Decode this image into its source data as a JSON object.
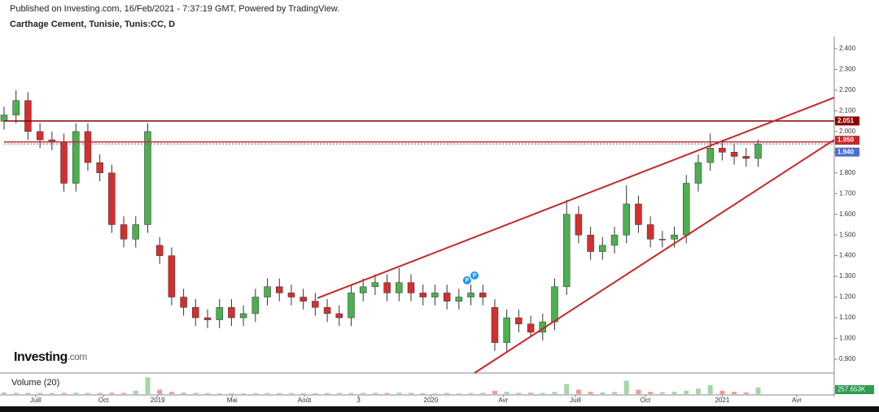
{
  "header": {
    "published": "Published on Investing.com, 16/Feb/2021 - 7:37:19 GMT, Powered by TradingView.",
    "symbol": "Carthage Cement, Tunisie, Tunis:CC, D"
  },
  "logo": {
    "brand": "Investing",
    "suffix": ".com"
  },
  "chart_data": {
    "type": "candlestick",
    "x": [
      -1.4,
      -0.87,
      -0.34,
      0.19,
      0.72,
      1.25,
      1.78,
      2.31,
      2.84,
      3.37,
      3.9,
      4.43,
      4.96,
      5.49,
      6.02,
      6.55,
      7.08,
      7.61,
      8.14,
      8.67,
      9.2,
      9.73,
      10.26,
      10.79,
      11.32,
      11.85,
      12.38,
      12.91,
      13.44,
      13.97,
      14.5,
      15.03,
      15.56,
      16.09,
      16.62,
      17.15,
      17.68,
      18.21,
      18.74,
      19.27,
      19.8,
      20.33,
      20.86,
      21.39,
      21.92,
      22.45,
      22.98,
      23.51,
      24.04,
      24.57,
      25.1,
      25.63,
      26.16,
      26.69,
      27.22,
      27.75,
      28.28,
      28.81,
      29.34,
      29.87,
      30.4,
      30.93,
      31.46,
      31.99
    ],
    "open": [
      2.05,
      2.08,
      2.15,
      2.0,
      1.96,
      1.95,
      1.75,
      2.0,
      1.85,
      1.8,
      1.55,
      1.48,
      1.55,
      1.45,
      1.4,
      1.2,
      1.15,
      1.1,
      1.09,
      1.15,
      1.1,
      1.12,
      1.2,
      1.25,
      1.22,
      1.2,
      1.18,
      1.15,
      1.12,
      1.1,
      1.22,
      1.25,
      1.27,
      1.22,
      1.27,
      1.22,
      1.2,
      1.22,
      1.18,
      1.2,
      1.22,
      1.15,
      0.98,
      1.1,
      1.07,
      1.03,
      1.08,
      1.25,
      1.6,
      1.5,
      1.42,
      1.45,
      1.5,
      1.65,
      1.55,
      1.48,
      1.48,
      1.5,
      1.75,
      1.85,
      1.92,
      1.9,
      1.88,
      1.87
    ],
    "high": [
      2.12,
      2.2,
      2.19,
      2.04,
      2.0,
      1.99,
      2.04,
      2.04,
      1.89,
      1.84,
      1.59,
      1.59,
      2.04,
      1.49,
      1.44,
      1.24,
      1.19,
      1.14,
      1.19,
      1.19,
      1.16,
      1.24,
      1.29,
      1.29,
      1.26,
      1.24,
      1.22,
      1.19,
      1.16,
      1.26,
      1.29,
      1.31,
      1.31,
      1.34,
      1.31,
      1.26,
      1.26,
      1.26,
      1.24,
      1.26,
      1.26,
      1.19,
      1.14,
      1.14,
      1.11,
      1.12,
      1.29,
      1.67,
      1.64,
      1.54,
      1.49,
      1.54,
      1.74,
      1.69,
      1.59,
      1.52,
      1.54,
      1.79,
      1.89,
      1.99,
      1.96,
      1.94,
      1.92,
      1.96
    ],
    "low": [
      2.01,
      2.04,
      1.96,
      1.92,
      1.91,
      1.71,
      1.71,
      1.81,
      1.76,
      1.51,
      1.44,
      1.44,
      1.51,
      1.36,
      1.16,
      1.11,
      1.06,
      1.05,
      1.05,
      1.06,
      1.06,
      1.08,
      1.16,
      1.18,
      1.16,
      1.14,
      1.11,
      1.08,
      1.06,
      1.06,
      1.18,
      1.21,
      1.18,
      1.18,
      1.18,
      1.16,
      1.16,
      1.14,
      1.14,
      1.16,
      1.16,
      0.94,
      0.94,
      1.03,
      1.01,
      0.99,
      1.04,
      1.21,
      1.46,
      1.38,
      1.38,
      1.41,
      1.46,
      1.51,
      1.44,
      1.44,
      1.44,
      1.46,
      1.71,
      1.81,
      1.86,
      1.84,
      1.83,
      1.83
    ],
    "close": [
      2.08,
      2.15,
      2.0,
      1.96,
      1.95,
      1.75,
      2.0,
      1.85,
      1.8,
      1.55,
      1.48,
      1.55,
      2.0,
      1.4,
      1.2,
      1.15,
      1.1,
      1.09,
      1.15,
      1.1,
      1.12,
      1.2,
      1.25,
      1.22,
      1.2,
      1.18,
      1.15,
      1.12,
      1.1,
      1.22,
      1.25,
      1.27,
      1.22,
      1.27,
      1.22,
      1.2,
      1.22,
      1.18,
      1.2,
      1.22,
      1.2,
      0.98,
      1.1,
      1.07,
      1.03,
      1.08,
      1.25,
      1.6,
      1.5,
      1.42,
      1.45,
      1.5,
      1.65,
      1.55,
      1.48,
      1.48,
      1.5,
      1.75,
      1.85,
      1.92,
      1.9,
      1.88,
      1.87,
      1.94
    ],
    "up_color": "#4caf50",
    "down_color": "#d32f2f",
    "xlim": [
      -1.4,
      35.36
    ],
    "ylim": [
      0.833,
      2.459
    ],
    "xticks": [
      {
        "value": 0,
        "label": "Juill"
      },
      {
        "value": 3,
        "label": "Oct"
      },
      {
        "value": 5.4,
        "label": "2019"
      },
      {
        "value": 8.7,
        "label": "Mai"
      },
      {
        "value": 11.9,
        "label": "Août"
      },
      {
        "value": 14.3,
        "label": "3"
      },
      {
        "value": 17.5,
        "label": "2020"
      },
      {
        "value": 20.7,
        "label": "Avr"
      },
      {
        "value": 23.9,
        "label": "Juill"
      },
      {
        "value": 27,
        "label": "Oct"
      },
      {
        "value": 30.4,
        "label": "2021"
      },
      {
        "value": 33.7,
        "label": "Avr"
      }
    ],
    "yticks": [
      {
        "value": 2.4,
        "label": "2.400"
      },
      {
        "value": 2.3,
        "label": "2.300"
      },
      {
        "value": 2.2,
        "label": "2.200"
      },
      {
        "value": 2.1,
        "label": "2.100"
      },
      {
        "value": 2.0,
        "label": "2.000"
      },
      {
        "value": 1.9,
        "label": "1.900"
      },
      {
        "value": 1.8,
        "label": "1.800"
      },
      {
        "value": 1.7,
        "label": "1.700"
      },
      {
        "value": 1.6,
        "label": "1.600"
      },
      {
        "value": 1.5,
        "label": "1.500"
      },
      {
        "value": 1.4,
        "label": "1.400"
      },
      {
        "value": 1.3,
        "label": "1.300"
      },
      {
        "value": 1.2,
        "label": "1.200"
      },
      {
        "value": 1.1,
        "label": "1.100"
      },
      {
        "value": 1.0,
        "label": "1.000"
      },
      {
        "value": 0.9,
        "label": "0.900"
      }
    ],
    "levels": [
      {
        "value": 2.051,
        "color": "#8b0000"
      },
      {
        "value": {
          "value": 1.95,
          "label": "1.950"
        },
        "color": "#c62828"
      },
      {
        "value": {
          "value": 1.94,
          "label": "1.940"
        },
        "color": "#4a6fd1"
      }
    ],
    "trend_lines": [
      {
        "x": [
          12.48,
          35.36
        ],
        "y": [
          1.195,
          2.164
        ],
        "color": "#c62828"
      },
      {
        "x": [
          19.43,
          35.36
        ],
        "y": [
          0.833,
          1.96
        ],
        "color": "#c62828"
      }
    ],
    "markers": [
      {
        "x": 19.1,
        "label": "P"
      },
      {
        "x": 19.43,
        "label": "P"
      }
    ],
    "volume": {
      "title": "Volume (20)",
      "ylim": [
        0,
        1600
      ],
      "values": [
        150,
        120,
        100,
        90,
        80,
        110,
        130,
        90,
        100,
        120,
        110,
        300,
        1500,
        400,
        200,
        120,
        90,
        70,
        80,
        60,
        70,
        90,
        100,
        80,
        70,
        60,
        70,
        80,
        90,
        100,
        110,
        120,
        100,
        130,
        90,
        80,
        70,
        90,
        80,
        100,
        90,
        300,
        200,
        100,
        120,
        110,
        200,
        900,
        400,
        200,
        150,
        200,
        1200,
        400,
        200,
        180,
        200,
        300,
        500,
        800,
        300,
        200,
        150,
        600
      ],
      "last": {
        "value": 257.653,
        "label": "257.653K"
      }
    }
  }
}
